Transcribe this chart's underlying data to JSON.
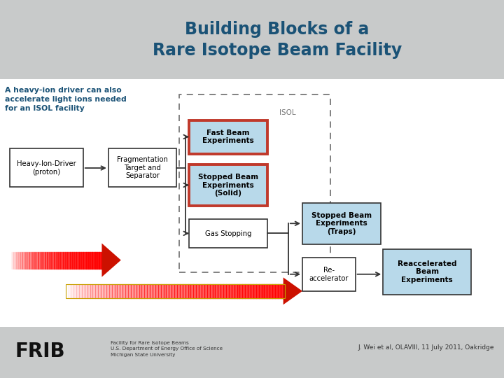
{
  "title_line1": "Building Blocks of a",
  "title_line2": "Rare Isotope Beam Facility",
  "title_color": "#1a5276",
  "title_bg_color": "#c8caca",
  "subtitle_text": "A heavy-ion driver can also\naccelerate light ions needed\nfor an ISOL facility",
  "subtitle_color": "#1a5276",
  "main_bg_color": "#ffffff",
  "footer_bg_color": "#c8caca",
  "citation": "J. Wei et al, OLAVIII, 11 July 2011, Oakridge",
  "frib_text": "FRIB",
  "frib_logo_text": "Facility for Rare Isotope Beams\nU.S. Department of Energy Office of Science\nMichigan State University"
}
